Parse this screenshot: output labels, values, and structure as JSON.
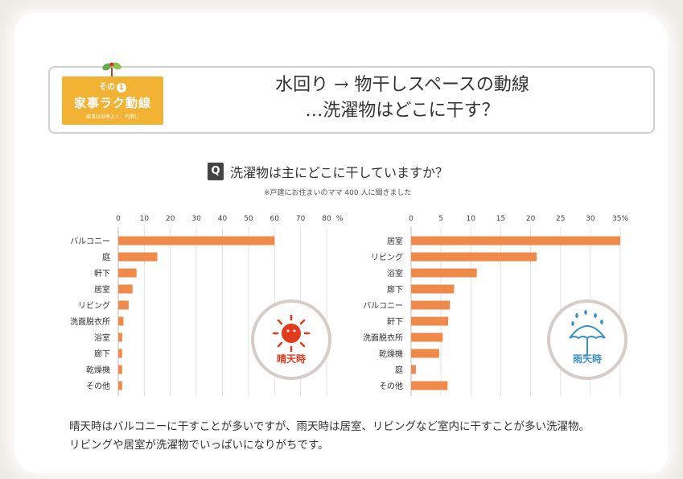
{
  "header": {
    "badge_prefix": "その",
    "badge_number": "1",
    "badge_title": "家事ラク動線",
    "badge_sub": "家事は効率よく、円滑に",
    "title_line1": "水回り → 物干しスペースの動線",
    "title_line2": "…洗濯物はどこに干す？"
  },
  "question": {
    "mark": "Q",
    "text": "洗濯物は主にどこに干していますか？",
    "note": "※戸建にお住まいのママ 400 人に聞きました"
  },
  "colors": {
    "bar": "#f08a4b",
    "sunny_accent": "#e23a1c",
    "rainy_accent": "#3a8fc9",
    "badge": "#f2b233"
  },
  "chart_data": [
    {
      "type": "bar",
      "orientation": "horizontal",
      "label": "晴天時",
      "icon": "sun-icon",
      "unit": "%",
      "xlim": [
        0,
        80
      ],
      "ticks": [
        "0",
        "10",
        "20",
        "30",
        "40",
        "50",
        "60",
        "70",
        "80"
      ],
      "categories": [
        "バルコニー",
        "庭",
        "軒下",
        "居室",
        "リビング",
        "洗面脱衣所",
        "浴室",
        "廊下",
        "乾燥機",
        "その他"
      ],
      "values": [
        60,
        15,
        7,
        5.5,
        4,
        2,
        1.5,
        1.5,
        1.5,
        1.5
      ]
    },
    {
      "type": "bar",
      "orientation": "horizontal",
      "label": "雨天時",
      "icon": "umbrella-icon",
      "unit": "%",
      "xlim": [
        0,
        35
      ],
      "ticks": [
        "0",
        "5",
        "10",
        "15",
        "20",
        "25",
        "30",
        "35%"
      ],
      "categories": [
        "居室",
        "リビング",
        "浴室",
        "廊下",
        "バルコニー",
        "軒下",
        "洗面脱衣所",
        "乾燥機",
        "庭",
        "その他"
      ],
      "values": [
        35,
        21,
        11,
        7.2,
        6.5,
        6.2,
        5.3,
        4.7,
        0.8,
        6.1
      ]
    }
  ],
  "footer": {
    "line1": "晴天時はバルコニーに干すことが多いですが、雨天時は居室、リビングなど室内に干すことが多い洗濯物。",
    "line2": "リビングや居室が洗濯物でいっぱいになりがちです。"
  }
}
